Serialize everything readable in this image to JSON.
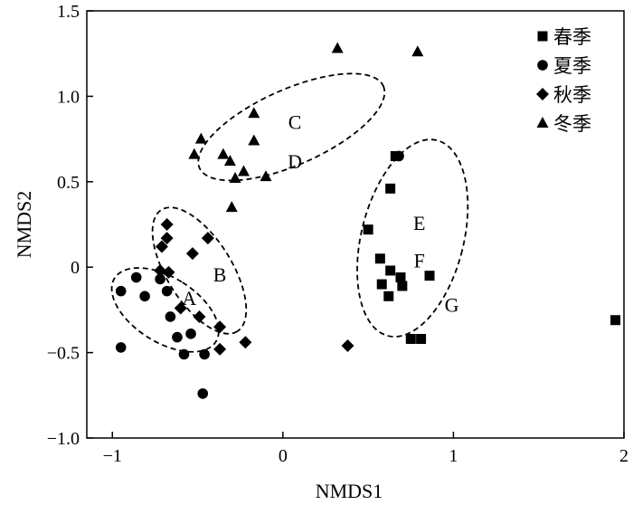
{
  "chart_data": {
    "type": "scatter",
    "xlabel": "NMDS1",
    "ylabel": "NMDS2",
    "xlim": [
      -1.15,
      2.0
    ],
    "ylim": [
      -1.0,
      1.5
    ],
    "x_ticks": [
      -1,
      0,
      1,
      2
    ],
    "x_tick_labels": [
      "−1",
      "0",
      "1",
      "2"
    ],
    "y_ticks": [
      -1.0,
      -0.5,
      0,
      0.5,
      1.0,
      1.5
    ],
    "y_tick_labels": [
      "−1.0",
      "−0.5",
      "0",
      "0.5",
      "1.0",
      "1.5"
    ],
    "grid": false,
    "legend_position": "top-right",
    "series": [
      {
        "name": "春季",
        "marker": "square",
        "points": [
          [
            0.66,
            0.65
          ],
          [
            0.63,
            0.46
          ],
          [
            0.5,
            0.22
          ],
          [
            0.57,
            0.05
          ],
          [
            0.58,
            -0.1
          ],
          [
            0.63,
            -0.02
          ],
          [
            0.62,
            -0.17
          ],
          [
            0.69,
            -0.06
          ],
          [
            0.7,
            -0.11
          ],
          [
            0.86,
            -0.05
          ],
          [
            0.75,
            -0.42
          ],
          [
            0.81,
            -0.42
          ],
          [
            1.95,
            -0.31
          ]
        ]
      },
      {
        "name": "夏季",
        "marker": "circle",
        "points": [
          [
            -0.95,
            -0.14
          ],
          [
            -0.86,
            -0.06
          ],
          [
            -0.81,
            -0.17
          ],
          [
            -0.95,
            -0.47
          ],
          [
            -0.72,
            -0.07
          ],
          [
            -0.68,
            -0.14
          ],
          [
            -0.66,
            -0.29
          ],
          [
            -0.62,
            -0.41
          ],
          [
            -0.58,
            -0.51
          ],
          [
            -0.54,
            -0.39
          ],
          [
            -0.46,
            -0.51
          ],
          [
            -0.47,
            -0.74
          ],
          [
            0.68,
            0.65
          ]
        ]
      },
      {
        "name": "秋季",
        "marker": "diamond",
        "points": [
          [
            -0.71,
            0.12
          ],
          [
            -0.68,
            0.17
          ],
          [
            -0.68,
            0.25
          ],
          [
            -0.72,
            -0.02
          ],
          [
            -0.67,
            -0.03
          ],
          [
            -0.6,
            -0.24
          ],
          [
            -0.53,
            0.08
          ],
          [
            -0.44,
            0.17
          ],
          [
            -0.49,
            -0.29
          ],
          [
            -0.37,
            -0.35
          ],
          [
            -0.37,
            -0.48
          ],
          [
            -0.22,
            -0.44
          ],
          [
            0.38,
            -0.46
          ]
        ]
      },
      {
        "name": "冬季",
        "marker": "triangle",
        "points": [
          [
            -0.52,
            0.66
          ],
          [
            -0.48,
            0.75
          ],
          [
            -0.35,
            0.66
          ],
          [
            -0.31,
            0.62
          ],
          [
            -0.28,
            0.52
          ],
          [
            -0.23,
            0.56
          ],
          [
            -0.17,
            0.74
          ],
          [
            -0.17,
            0.9
          ],
          [
            -0.1,
            0.53
          ],
          [
            -0.3,
            0.35
          ],
          [
            0.32,
            1.28
          ],
          [
            0.79,
            1.26
          ]
        ]
      }
    ],
    "ellipses": [
      {
        "label": "A",
        "cx": -0.69,
        "cy": -0.25,
        "rx": 0.19,
        "ry": 0.35,
        "angle_deg": -58
      },
      {
        "label": "B",
        "cx": -0.49,
        "cy": -0.02,
        "rx": 0.42,
        "ry": 0.19,
        "angle_deg": 58
      },
      {
        "label": "C",
        "cx": 0.05,
        "cy": 0.82,
        "rx": 0.59,
        "ry": 0.22,
        "angle_deg": -24
      },
      {
        "label": "D",
        "cx": 0.05,
        "cy": 0.82,
        "rx": 0.59,
        "ry": 0.22,
        "angle_deg": -24
      },
      {
        "label": "E",
        "cx": 0.76,
        "cy": 0.17,
        "rx": 0.3,
        "ry": 0.59,
        "angle_deg": 14
      },
      {
        "label": "F",
        "cx": 0.76,
        "cy": 0.17,
        "rx": 0.3,
        "ry": 0.59,
        "angle_deg": 14
      },
      {
        "label": "G",
        "cx": 0.76,
        "cy": 0.17,
        "rx": 0.3,
        "ry": 0.59,
        "angle_deg": 14
      }
    ],
    "annotations": [
      {
        "text": "A",
        "x": -0.55,
        "y": -0.18
      },
      {
        "text": "B",
        "x": -0.37,
        "y": -0.04
      },
      {
        "text": "C",
        "x": 0.07,
        "y": 0.85
      },
      {
        "text": "D",
        "x": 0.07,
        "y": 0.62
      },
      {
        "text": "E",
        "x": 0.8,
        "y": 0.26
      },
      {
        "text": "F",
        "x": 0.8,
        "y": 0.04
      },
      {
        "text": "G",
        "x": 0.99,
        "y": -0.22
      }
    ]
  }
}
